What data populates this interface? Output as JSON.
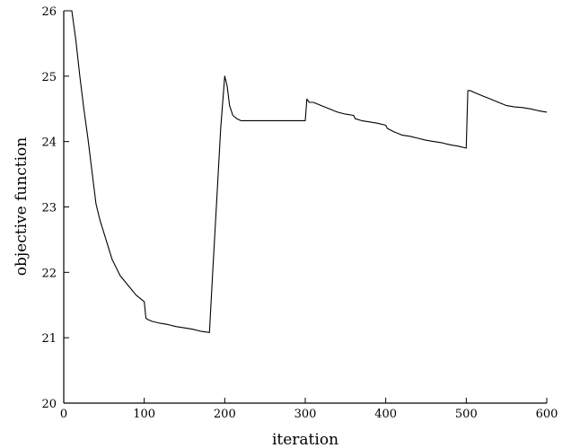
{
  "chart_data": {
    "type": "line",
    "title": "",
    "xlabel": "iteration",
    "ylabel": "objective function",
    "xlim": [
      0,
      600
    ],
    "ylim": [
      20,
      26
    ],
    "xticks": [
      0,
      100,
      200,
      300,
      400,
      500,
      600
    ],
    "yticks": [
      20,
      21,
      22,
      23,
      24,
      25,
      26
    ],
    "xtick_labels": [
      "0",
      "100",
      "200",
      "300",
      "400",
      "500",
      "600"
    ],
    "ytick_labels": [
      "20",
      "21",
      "22",
      "23",
      "24",
      "25",
      "26"
    ],
    "grid": false,
    "legend": "none",
    "series": [
      {
        "x": [
          5,
          10,
          15,
          20,
          25,
          30,
          35,
          40,
          45,
          50,
          60,
          70,
          80,
          90,
          100,
          102,
          104,
          110,
          120,
          130,
          140,
          150,
          160,
          170,
          181,
          185,
          190,
          195,
          200,
          203,
          206,
          210,
          215,
          220,
          230,
          240,
          250,
          260,
          270,
          280,
          290,
          300,
          302,
          305,
          310,
          320,
          330,
          340,
          350,
          360,
          362,
          370,
          380,
          390,
          400,
          402,
          410,
          420,
          430,
          440,
          450,
          460,
          470,
          480,
          490,
          500,
          502,
          505,
          510,
          520,
          530,
          540,
          550,
          560,
          570,
          580,
          590,
          600
        ],
        "y": [
          26.0,
          26.0,
          25.55,
          25.0,
          24.5,
          24.05,
          23.55,
          23.05,
          22.8,
          22.6,
          22.2,
          21.95,
          21.8,
          21.65,
          21.55,
          21.3,
          21.28,
          21.25,
          21.22,
          21.2,
          21.17,
          21.15,
          21.13,
          21.1,
          21.08,
          22.0,
          23.1,
          24.2,
          25.0,
          24.85,
          24.55,
          24.4,
          24.35,
          24.32,
          24.32,
          24.32,
          24.32,
          24.32,
          24.32,
          24.32,
          24.32,
          24.32,
          24.65,
          24.6,
          24.6,
          24.55,
          24.5,
          24.45,
          24.42,
          24.4,
          24.35,
          24.32,
          24.3,
          24.28,
          24.25,
          24.2,
          24.15,
          24.1,
          24.08,
          24.05,
          24.02,
          24.0,
          23.98,
          23.95,
          23.93,
          23.9,
          24.78,
          24.78,
          24.75,
          24.7,
          24.65,
          24.6,
          24.55,
          24.53,
          24.52,
          24.5,
          24.47,
          24.45
        ]
      }
    ]
  }
}
